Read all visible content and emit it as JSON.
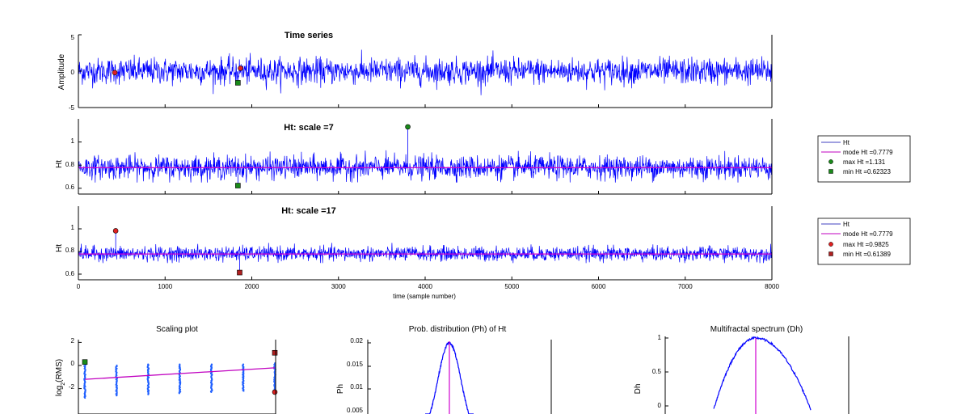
{
  "chart_data": [
    {
      "id": "ts",
      "type": "line",
      "title": "Time series",
      "ylabel": "Amplitude",
      "xlabel": "",
      "xlim": [
        0,
        8000
      ],
      "ylim": [
        -5,
        5
      ],
      "yticks": [
        "-5",
        "0",
        "5"
      ],
      "series": [
        {
          "color": "#0000ff",
          "n": 8000,
          "mean": 0,
          "amplitude": 1.0
        }
      ],
      "markers": [
        {
          "x": 420,
          "y": -0.2,
          "shape": "circle",
          "color": "#e02020"
        },
        {
          "x": 1870,
          "y": 0.4,
          "shape": "circle",
          "color": "#e02020"
        },
        {
          "x": 1840,
          "y": -1.6,
          "shape": "square",
          "color": "#1a8a1a"
        }
      ]
    },
    {
      "id": "ht7",
      "type": "line",
      "title": "Ht: scale =7",
      "ylabel": "Ht",
      "xlim": [
        0,
        8000
      ],
      "ylim": [
        0.55,
        1.2
      ],
      "yticks": [
        "0.6",
        "0.8",
        "1"
      ],
      "mode_line": 0.7779,
      "series": [
        {
          "color": "#0000ff",
          "mean": 0.78,
          "amplitude": 0.09
        }
      ],
      "markers": [
        {
          "x": 3800,
          "y": 1.131,
          "shape": "circle",
          "color": "#1a8a1a"
        },
        {
          "x": 1840,
          "y": 0.62323,
          "shape": "square",
          "color": "#1a8a1a"
        }
      ],
      "legend": {
        "position": "right",
        "entries": [
          {
            "label": "Ht",
            "kind": "line",
            "color": "#4040c0"
          },
          {
            "label": "mode Ht =0.7779",
            "kind": "line",
            "color": "#c000c0"
          },
          {
            "label": "max Ht =1.131",
            "kind": "circle",
            "color": "#1a8a1a"
          },
          {
            "label": "min Ht =0.62323",
            "kind": "square",
            "color": "#1a8a1a"
          }
        ]
      }
    },
    {
      "id": "ht17",
      "type": "line",
      "title": "Ht: scale =17",
      "ylabel": "Ht",
      "xlabel": "time (sample number)",
      "xlim": [
        0,
        8000
      ],
      "ylim": [
        0.55,
        1.2
      ],
      "yticks": [
        "0.6",
        "0.8",
        "1"
      ],
      "xticks": [
        "0",
        "1000",
        "2000",
        "3000",
        "4000",
        "5000",
        "6000",
        "7000",
        "8000"
      ],
      "mode_line": 0.7779,
      "series": [
        {
          "color": "#0000ff",
          "mean": 0.78,
          "amplitude": 0.06
        }
      ],
      "markers": [
        {
          "x": 430,
          "y": 0.9825,
          "shape": "circle",
          "color": "#e02020"
        },
        {
          "x": 1860,
          "y": 0.61389,
          "shape": "square",
          "color": "#b02020"
        }
      ],
      "legend": {
        "position": "right",
        "entries": [
          {
            "label": "Ht",
            "kind": "line",
            "color": "#4040c0"
          },
          {
            "label": "mode Ht =0.7779",
            "kind": "line",
            "color": "#c000c0"
          },
          {
            "label": "max Ht =0.9825",
            "kind": "circle",
            "color": "#e02020"
          },
          {
            "label": "min Ht =0.61389",
            "kind": "square",
            "color": "#b02020"
          }
        ]
      }
    },
    {
      "id": "scaling",
      "type": "scatter",
      "title": "Scaling plot",
      "ylabel": "log2(RMS)",
      "ylabel_base": "log",
      "ylabel_sub": "2",
      "ylabel_tail": "(RMS)",
      "ylim": [
        -4,
        2
      ],
      "yticks": [
        "2",
        "0",
        "-2"
      ],
      "columns": [
        {
          "x": 1,
          "ymin": -2.8,
          "ymax": 0.1
        },
        {
          "x": 2,
          "ymin": -2.6,
          "ymax": 0.0
        },
        {
          "x": 3,
          "ymin": -2.5,
          "ymax": 0.1
        },
        {
          "x": 4,
          "ymin": -2.4,
          "ymax": 0.1
        },
        {
          "x": 5,
          "ymin": -2.3,
          "ymax": 0.1
        },
        {
          "x": 6,
          "ymin": -2.2,
          "ymax": 0.1
        },
        {
          "x": 7,
          "ymin": -2.1,
          "ymax": 0.2
        }
      ],
      "fit": {
        "x": [
          1,
          7
        ],
        "y": [
          -1.2,
          -0.2
        ],
        "color": "#c000c0"
      },
      "markers": [
        {
          "x": 1,
          "y": 0.3,
          "shape": "square",
          "color": "#1a8a1a"
        },
        {
          "x": 7,
          "y": 1.1,
          "shape": "square",
          "color": "#b02020"
        },
        {
          "x": 7,
          "y": -2.3,
          "shape": "circle",
          "color": "#e02020"
        }
      ]
    },
    {
      "id": "ph",
      "type": "line",
      "title": "Prob. distribution (Ph) of Ht",
      "ylabel": "Ph",
      "ylim": [
        0,
        0.02
      ],
      "yticks": [
        "0.02",
        "0.015",
        "0.01",
        "0.005"
      ],
      "xlim": [
        0.6,
        1.0
      ],
      "peak": {
        "x": 0.7779,
        "y": 0.0195
      },
      "mode_line": 0.7779
    },
    {
      "id": "dh",
      "type": "line",
      "title": "Multifractal spectrum (Dh)",
      "ylabel": "Dh",
      "ylim": [
        -0.3,
        1
      ],
      "yticks": [
        "1",
        "0.5",
        "0"
      ],
      "xlim": [
        0.6,
        1.0
      ],
      "peak": {
        "x": 0.7779,
        "y": 1.0
      },
      "mode_line": 0.7779
    }
  ]
}
